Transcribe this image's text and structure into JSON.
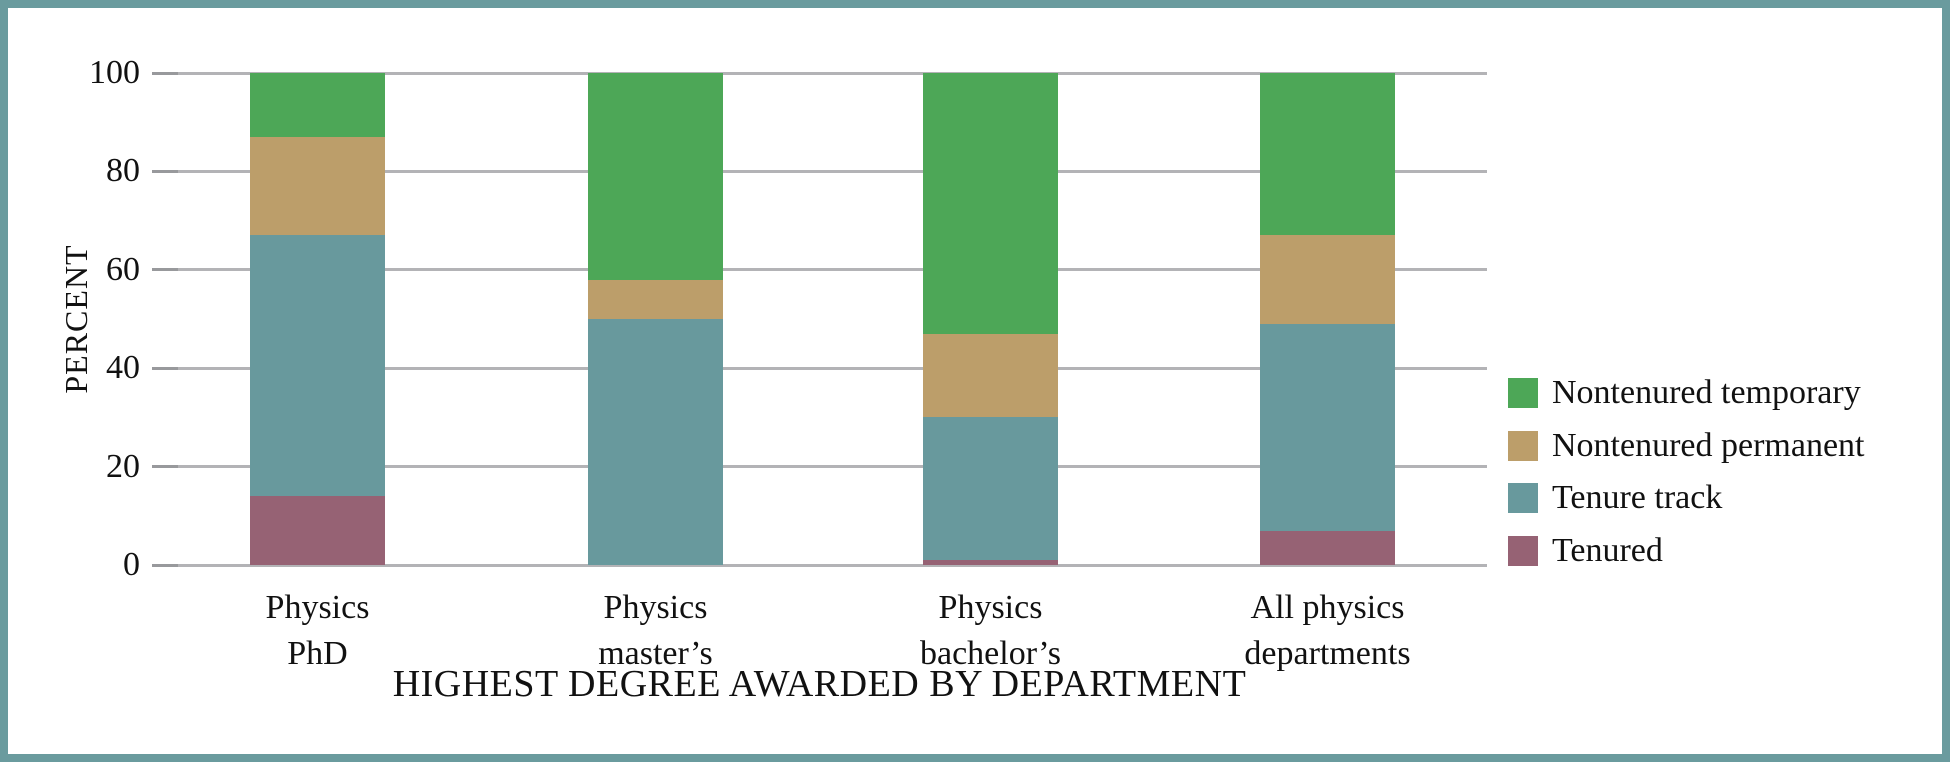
{
  "chart_data": {
    "type": "bar",
    "stacked": true,
    "xlabel": "HIGHEST DEGREE AWARDED BY DEPARTMENT",
    "ylabel": "PERCENT",
    "ylim": [
      0,
      100
    ],
    "yticks": [
      0,
      20,
      40,
      60,
      80,
      100
    ],
    "grid": true,
    "legend_position": "right",
    "legend_order_top_to_bottom": [
      "Nontenured temporary",
      "Nontenured permanent",
      "Tenure track",
      "Tenured"
    ],
    "categories": [
      {
        "name": "Physics PhD",
        "label_lines": [
          "Physics",
          "PhD"
        ]
      },
      {
        "name": "Physics master’s",
        "label_lines": [
          "Physics",
          "master’s"
        ]
      },
      {
        "name": "Physics bachelor’s",
        "label_lines": [
          "Physics",
          "bachelor’s"
        ]
      },
      {
        "name": "All physics departments",
        "label_lines": [
          "All physics",
          "departments"
        ]
      }
    ],
    "series": [
      {
        "name": "Tenured",
        "color": "#966274",
        "values": [
          14,
          0,
          1,
          7
        ]
      },
      {
        "name": "Tenure track",
        "color": "#68999D",
        "values": [
          53,
          50,
          29,
          42
        ]
      },
      {
        "name": "Nontenured permanent",
        "color": "#BC9E6A",
        "values": [
          20,
          8,
          17,
          18
        ]
      },
      {
        "name": "Nontenured temporary",
        "color": "#4DA757",
        "values": [
          13,
          42,
          53,
          33
        ]
      }
    ],
    "colors": {
      "frame_border": "#6A9B9E",
      "gridline": "#B3B3B6",
      "text": "#111111"
    }
  }
}
